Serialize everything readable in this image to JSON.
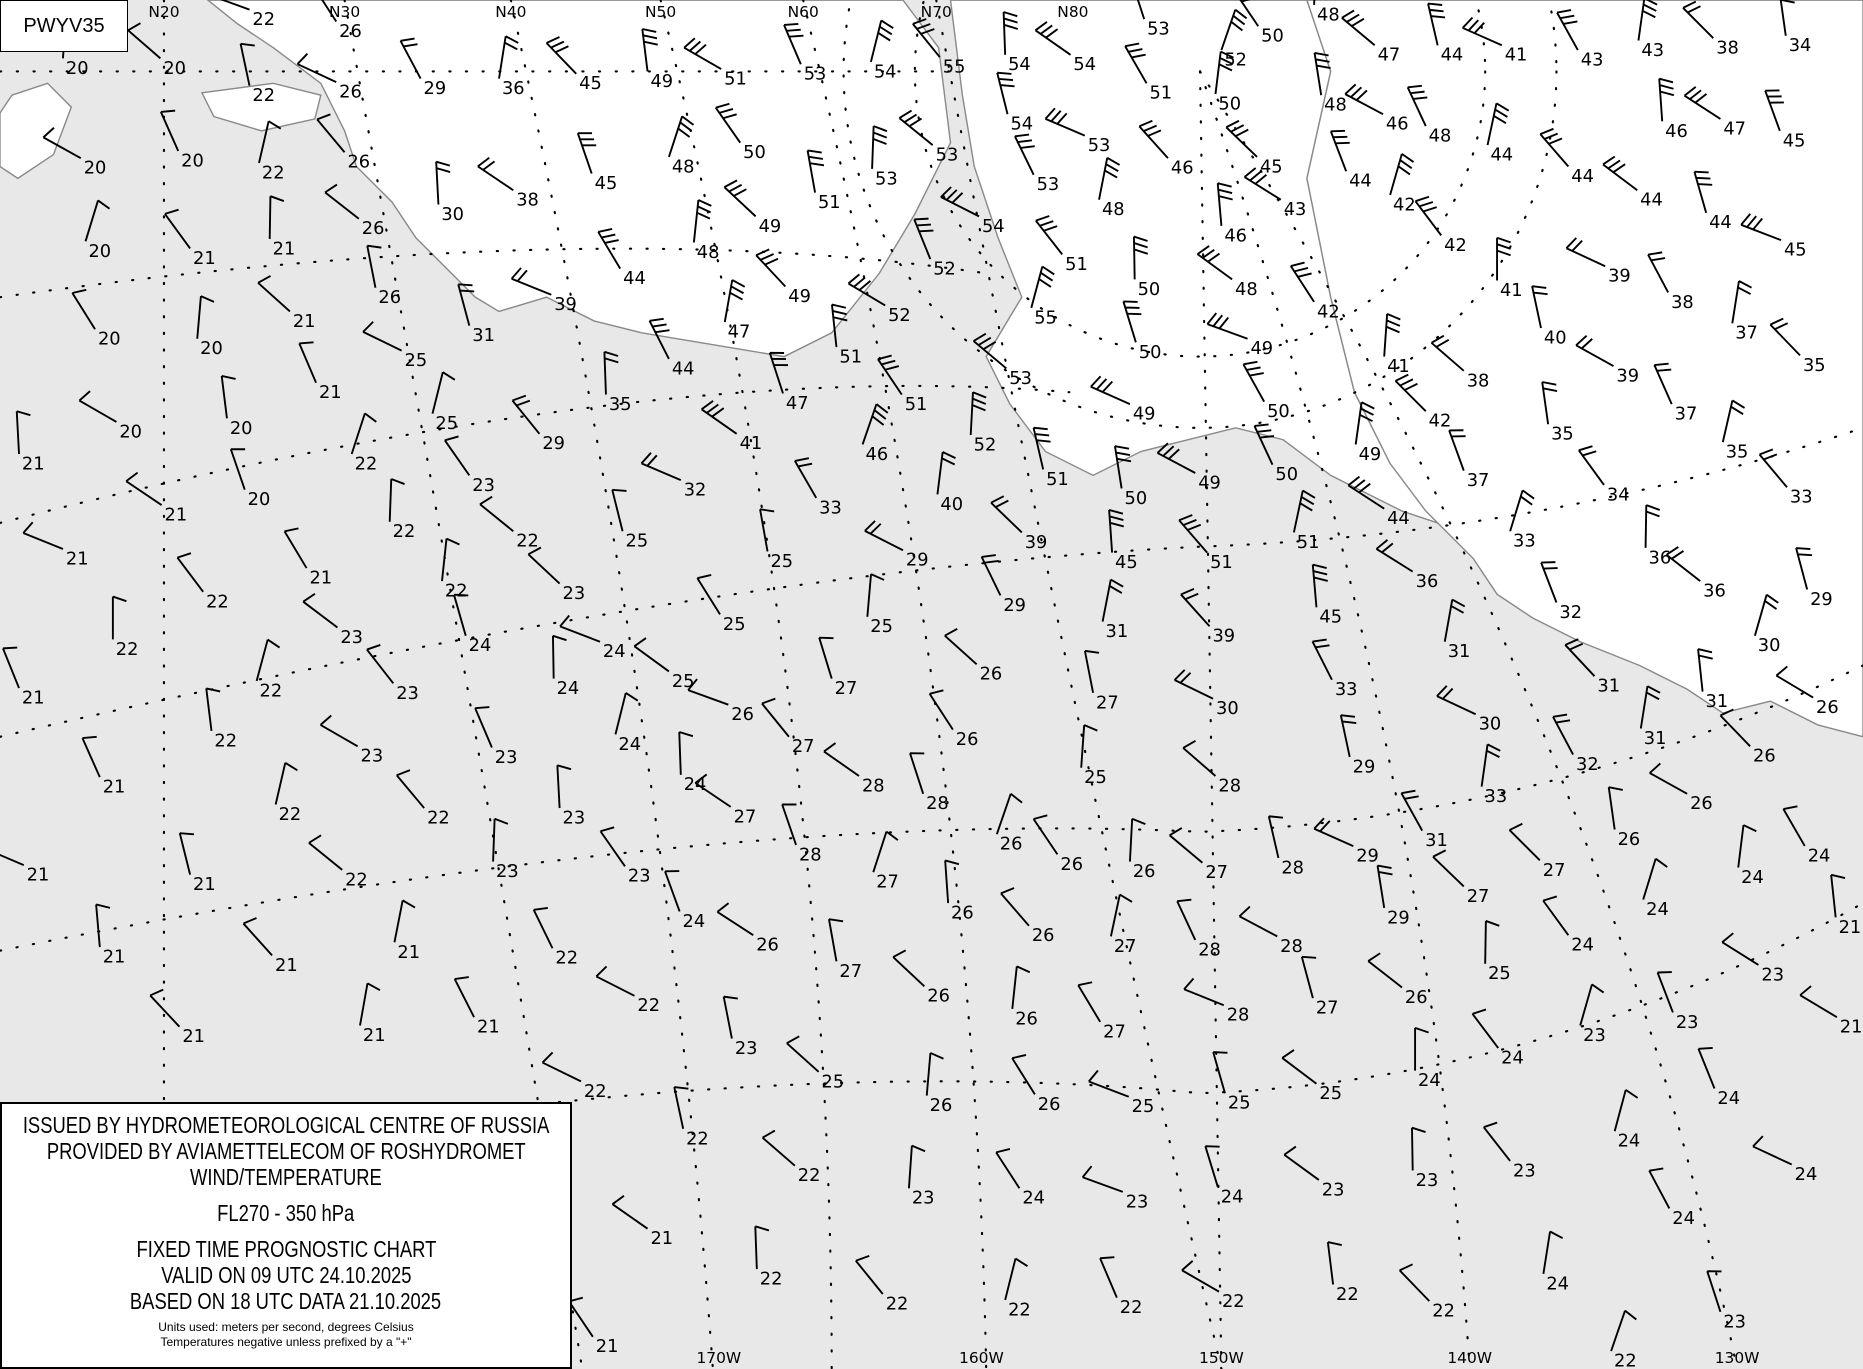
{
  "chart_code": "PWYV35",
  "colors": {
    "ocean": "#e8e8e8",
    "land": "#ffffff",
    "coast": "#8a8a8a",
    "ink": "#000000"
  },
  "longitude_labels_top": [
    "N20",
    "N30",
    "N40",
    "N50",
    "N60",
    "N70",
    "N80"
  ],
  "longitude_labels_bottom": [
    "170W",
    "160W",
    "150W",
    "140W",
    "130W"
  ],
  "legend": {
    "line1": "ISSUED BY HYDROMETEOROLOGICAL CENTRE OF RUSSIA",
    "line2": "PROVIDED BY AVIAMETTELECOM OF ROSHYDROMET",
    "line3": "WIND/TEMPERATURE",
    "level": "FL270 - 350 hPa",
    "chart_type": "FIXED TIME PROGNOSTIC CHART",
    "valid": "VALID ON 09 UTC 24.10.2025",
    "based": "BASED ON 18 UTC DATA 21.10.2025",
    "units": "Units used: meters per second, degrees Celsius",
    "note": "Temperatures negative unless prefixed by a \"+\""
  },
  "temperatures": [
    22,
    26,
    20,
    20,
    22,
    26,
    29,
    36,
    45,
    49,
    51,
    53,
    54,
    55,
    54,
    54,
    53,
    52,
    50,
    48,
    47,
    44,
    41,
    43,
    43,
    38,
    34,
    20,
    20,
    22,
    26,
    30,
    38,
    45,
    48,
    50,
    53,
    53,
    54,
    53,
    51,
    50,
    45,
    48,
    46,
    48,
    44,
    44,
    46,
    47,
    45,
    20,
    21,
    21,
    26,
    31,
    39,
    44,
    48,
    49,
    51,
    54,
    53,
    48,
    46,
    46,
    43,
    44,
    42,
    42,
    41,
    44,
    44,
    45,
    20,
    20,
    21,
    26,
    25,
    44,
    47,
    49,
    51,
    52,
    52,
    55,
    51,
    50,
    48,
    50,
    49,
    42,
    41,
    38,
    40,
    39,
    38,
    37,
    35,
    20,
    20,
    21,
    25,
    29,
    35,
    41,
    47,
    46,
    51,
    52,
    53,
    51,
    49,
    50,
    49,
    42,
    35,
    39,
    37,
    35,
    33,
    21,
    21,
    20,
    22,
    23,
    22,
    22,
    25,
    32,
    33,
    40,
    39,
    50,
    49,
    50,
    51,
    51,
    45,
    44,
    37,
    33,
    34,
    36,
    36,
    29,
    21,
    21,
    22,
    23,
    25,
    29,
    29,
    31,
    39,
    45,
    36,
    32,
    30,
    22,
    22,
    23,
    24,
    24,
    25,
    25,
    26,
    27,
    30,
    33,
    31,
    31,
    31,
    26,
    21,
    22,
    23,
    24,
    25,
    27,
    26,
    26,
    25,
    28,
    29,
    30,
    32,
    31,
    26,
    22,
    23,
    23,
    24,
    27,
    24,
    28,
    28,
    26,
    26,
    26,
    27,
    28,
    29,
    31,
    33,
    27,
    26,
    26,
    21,
    22,
    22,
    23,
    27,
    28,
    27,
    23,
    23,
    22,
    21,
    21,
    24,
    24,
    27,
    29,
    28,
    28,
    27,
    26,
    26,
    26,
    24,
    24,
    24,
    25,
    26,
    27,
    28,
    27,
    26,
    26,
    27,
    22,
    22,
    21,
    21,
    21,
    23,
    23,
    23,
    24,
    24,
    25,
    25,
    25,
    26,
    26,
    25,
    23,
    22,
    21,
    21,
    21,
    21,
    21,
    24,
    24,
    23,
    23,
    23,
    24,
    23,
    24,
    23,
    22,
    22,
    24,
    24,
    24,
    22,
    22,
    22,
    22,
    22,
    22,
    22,
    21,
    23,
    22,
    21
  ]
}
